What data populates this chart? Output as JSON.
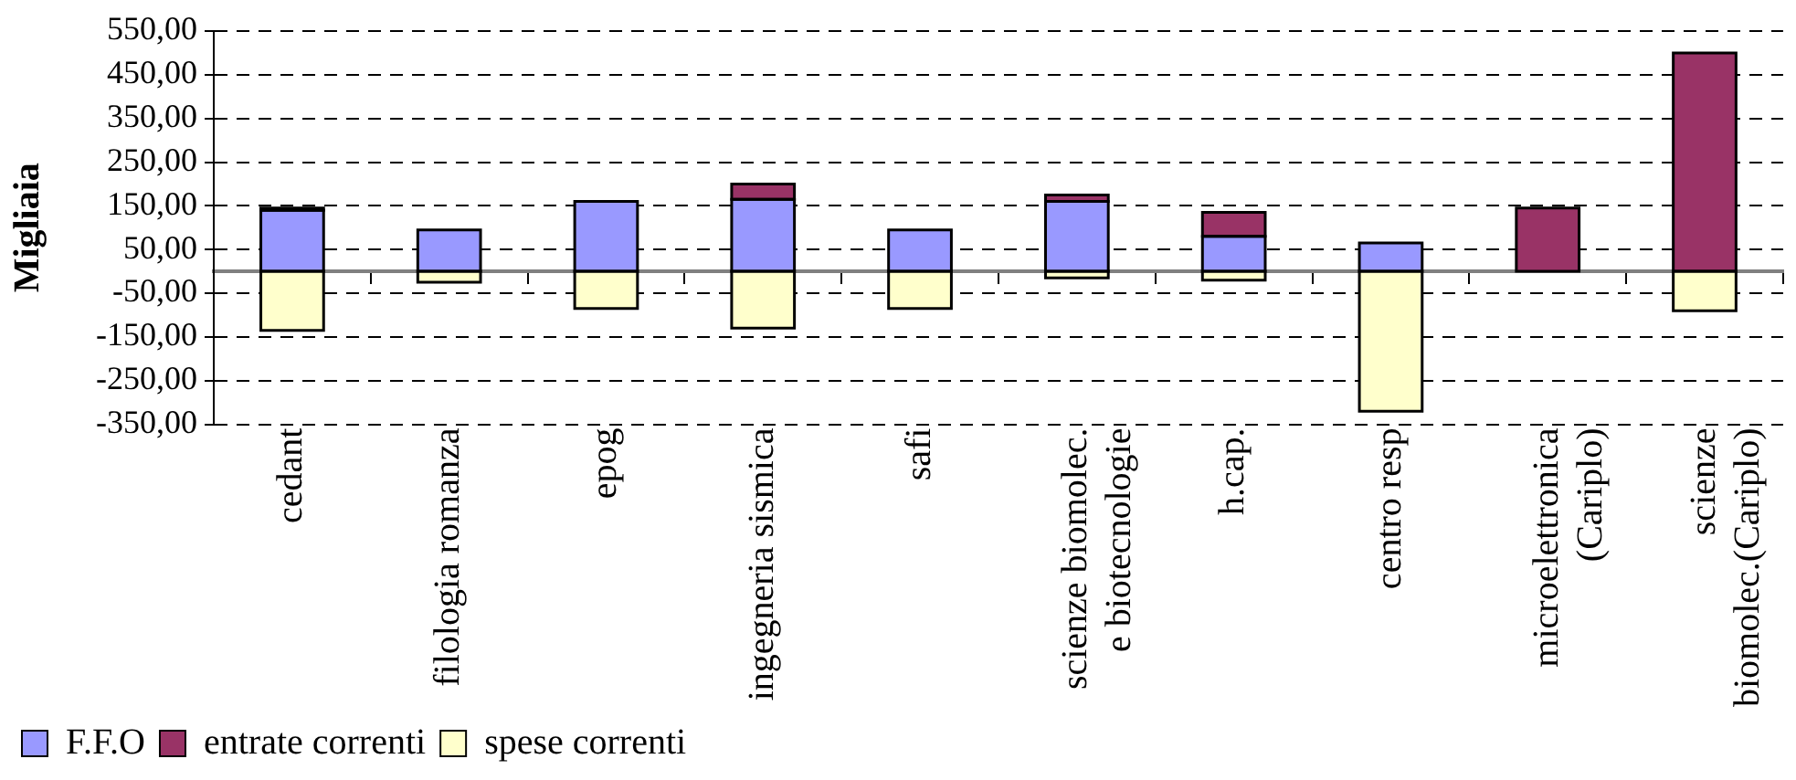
{
  "chart_data": {
    "type": "bar",
    "ylabel": "Migliaia",
    "categories": [
      "cedant",
      "filologia romanza",
      "epog",
      "ingegneria sismica",
      "safi",
      "scienze biomolec. e biotecnologie",
      "h.cap.",
      "centro resp",
      "microelettronica (Cariplo)",
      "scienze biomolec.(Cariplo)"
    ],
    "series": [
      {
        "name": "F.F.O",
        "color": "#9999ff",
        "values": [
          140,
          95,
          160,
          165,
          95,
          160,
          80,
          65,
          null,
          null
        ]
      },
      {
        "name": "entrate correnti",
        "color": "#993366",
        "values": [
          5,
          null,
          null,
          35,
          null,
          15,
          55,
          null,
          145,
          500
        ]
      },
      {
        "name": "spese correnti",
        "color": "#ffffcc",
        "values": [
          -135,
          -25,
          -85,
          -130,
          -85,
          -15,
          -20,
          -320,
          null,
          -90
        ]
      }
    ],
    "stacked": true,
    "ylim": [
      -350,
      550
    ],
    "yticks": [
      {
        "value": -350,
        "label": "-350,00"
      },
      {
        "value": -250,
        "label": "-250,00"
      },
      {
        "value": -150,
        "label": "-150,00"
      },
      {
        "value": -50,
        "label": "-50,00"
      },
      {
        "value": 50,
        "label": "50,00"
      },
      {
        "value": 150,
        "label": "150,00"
      },
      {
        "value": 250,
        "label": "250,00"
      },
      {
        "value": 350,
        "label": "350,00"
      },
      {
        "value": 450,
        "label": "450,00"
      },
      {
        "value": 550,
        "label": "550,00"
      }
    ],
    "grid": "y",
    "legend": "bottom left"
  }
}
